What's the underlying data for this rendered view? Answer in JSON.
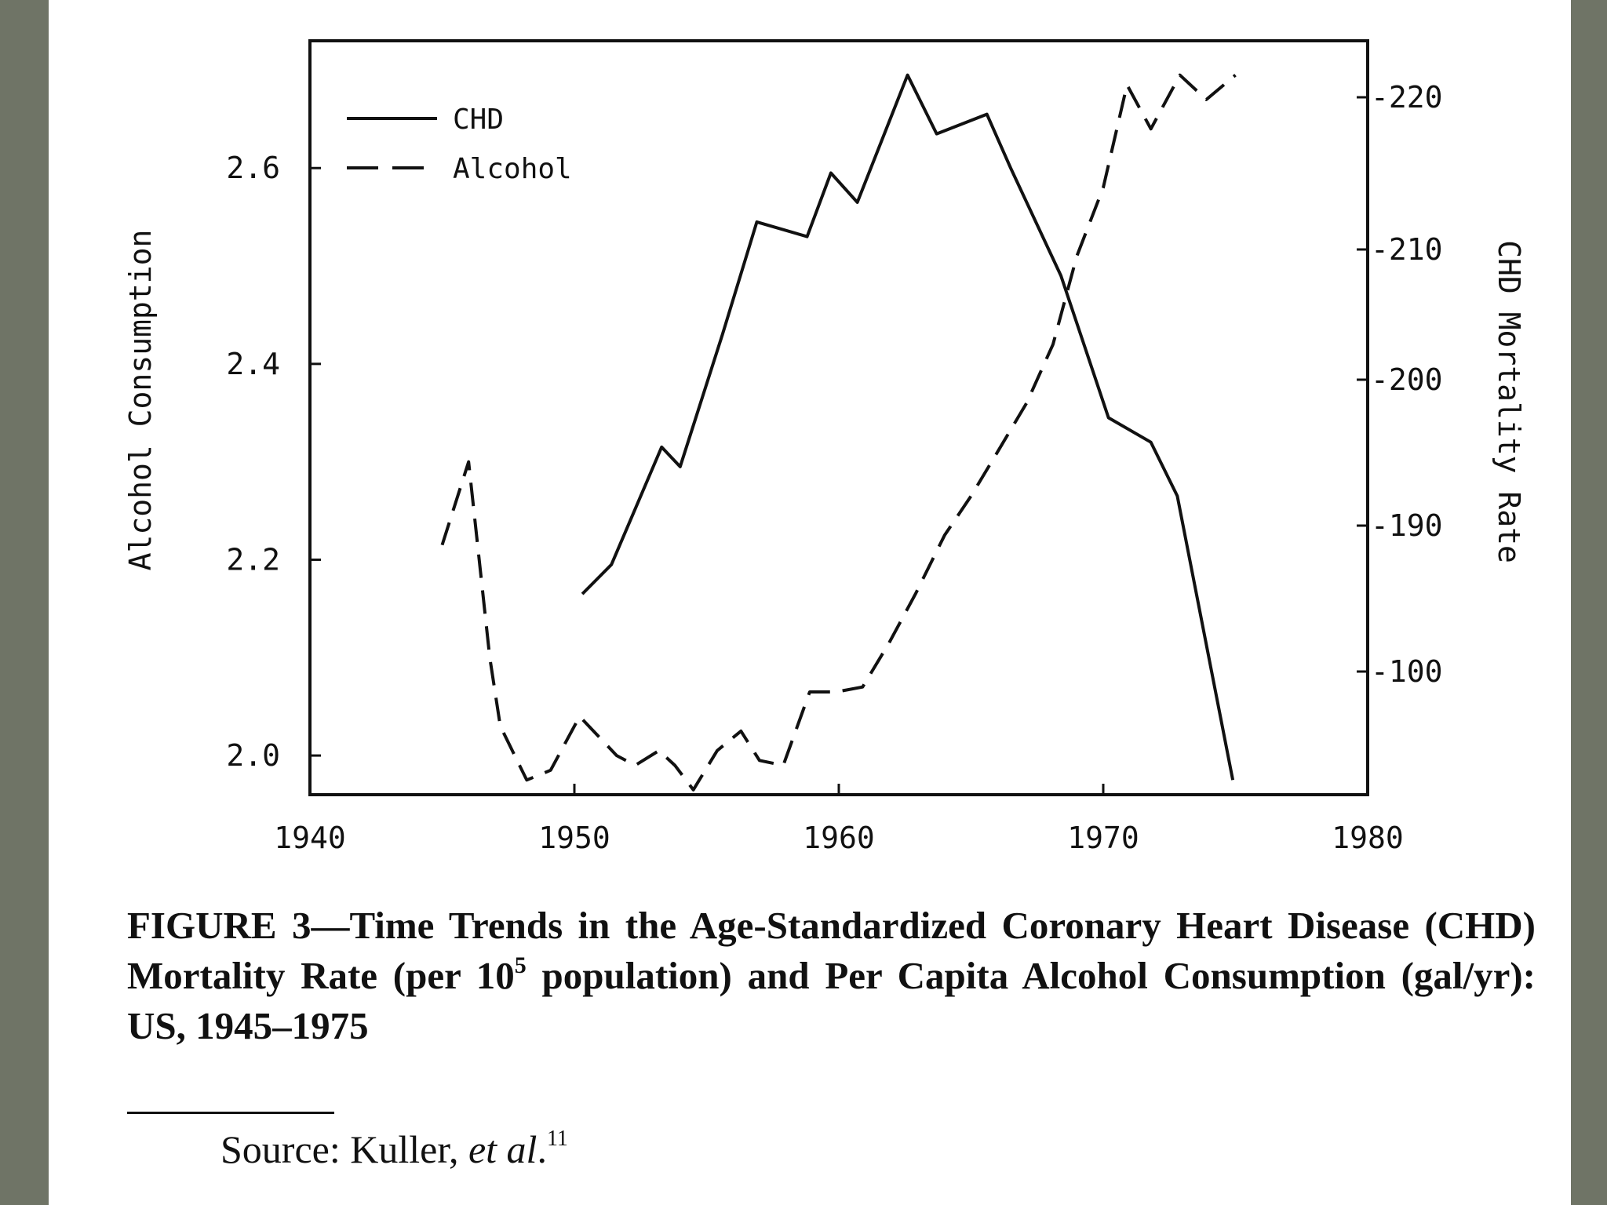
{
  "figure": {
    "caption_pre": "FIGURE 3—Time Trends in the Age-Standardized Coronary Heart Disease (CHD) Mortality Rate (per 10",
    "caption_sup": "5",
    "caption_post": " population) and Per Capita Alcohol Consumption (gal/yr): US, 1945–1975",
    "source_label": "Source: Kuller, ",
    "source_italic": "et al",
    "source_tail": ".",
    "source_ref": "11"
  },
  "chart_data": {
    "type": "line",
    "title": "",
    "xlabel": "",
    "ylabel_left": "Alcohol Consumption",
    "ylabel_right": "CHD Mortality Rate",
    "xlim": [
      1940,
      1980
    ],
    "ylim_left": [
      1.96,
      2.73
    ],
    "ylim_right_ticks": [
      "-220",
      "-210",
      "-200",
      "-190",
      "-100"
    ],
    "x_ticks": [
      "1940",
      "1950",
      "1960",
      "1970",
      "1980"
    ],
    "y_left_ticks": [
      "2.0",
      "2.2",
      "2.4",
      "2.6"
    ],
    "y_left_tick_values": [
      2.0,
      2.2,
      2.4,
      2.6
    ],
    "grid": false,
    "legend_position": "top-left",
    "series": [
      {
        "name": "CHD",
        "style": "solid",
        "axis": "right",
        "x": [
          1950.3,
          1951.4,
          1953.3,
          1954.0,
          1955.6,
          1956.9,
          1958.8,
          1959.7,
          1960.7,
          1962.6,
          1963.7,
          1965.6,
          1966.5,
          1968.4,
          1970.2,
          1971.8,
          1972.8,
          1974.9
        ],
        "y_left_equiv": [
          2.165,
          2.195,
          2.315,
          2.295,
          2.43,
          2.545,
          2.53,
          2.595,
          2.565,
          2.695,
          2.635,
          2.655,
          2.6,
          2.49,
          2.345,
          2.32,
          2.265,
          1.975
        ]
      },
      {
        "name": "Alcohol",
        "style": "dashed",
        "axis": "left",
        "x": [
          1945.0,
          1946.0,
          1946.8,
          1947.2,
          1948.2,
          1949.1,
          1950.2,
          1951.6,
          1952.3,
          1953.2,
          1953.8,
          1954.5,
          1955.4,
          1956.3,
          1957.0,
          1957.9,
          1958.9,
          1959.9,
          1960.9,
          1961.9,
          1962.9,
          1964.0,
          1965.0,
          1966.0,
          1967.1,
          1968.1,
          1969.0,
          1970.0,
          1970.9,
          1971.8,
          1972.9,
          1973.9,
          1975.0
        ],
        "y": [
          2.215,
          2.3,
          2.1,
          2.03,
          1.975,
          1.985,
          2.04,
          2.0,
          1.99,
          2.005,
          1.99,
          1.965,
          2.005,
          2.025,
          1.995,
          1.99,
          2.065,
          2.065,
          2.07,
          2.115,
          2.165,
          2.225,
          2.265,
          2.31,
          2.36,
          2.42,
          2.51,
          2.58,
          2.685,
          2.64,
          2.695,
          2.67,
          2.695
        ]
      }
    ]
  }
}
